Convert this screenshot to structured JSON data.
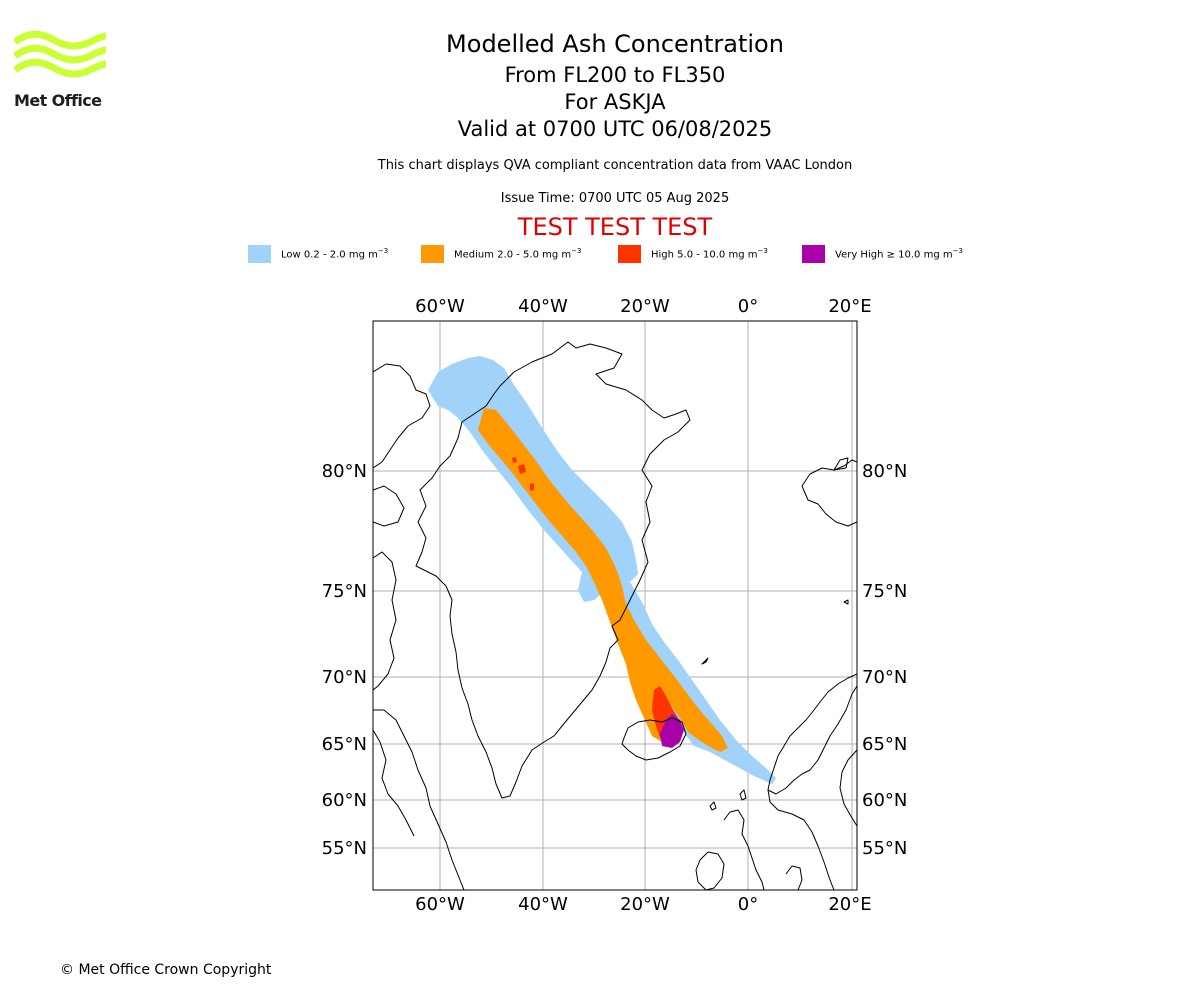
{
  "header": {
    "title": "Modelled Ash Concentration",
    "levels": "From FL200 to FL350",
    "volcano": "For ASKJA",
    "valid": "Valid at 0700 UTC 06/08/2025",
    "description": "This chart displays QVA compliant concentration data from VAAC London",
    "issue_time": "Issue Time: 0700 UTC 05 Aug 2025",
    "test_banner": "TEST TEST TEST"
  },
  "logo": {
    "text": "Met Office",
    "icon": "met-office-wave-logo",
    "color": "#ccff33"
  },
  "legend": [
    {
      "label": "Low 0.2 - 2.0 mg m",
      "sup": "−3",
      "color": "#a0d2fa"
    },
    {
      "label": "Medium 2.0 - 5.0 mg m",
      "sup": "−3",
      "color": "#ff9900"
    },
    {
      "label": "High 5.0 - 10.0 mg m",
      "sup": "−3",
      "color": "#ff3300"
    },
    {
      "label": "Very High  ≥  10.0 mg m",
      "sup": "−3",
      "color": "#aa00aa"
    }
  ],
  "map": {
    "lon_labels": [
      "60°W",
      "40°W",
      "20°W",
      "0°",
      "20°E"
    ],
    "lat_labels": [
      "80°N",
      "75°N",
      "70°N",
      "65°N",
      "60°N",
      "55°N"
    ],
    "grid": true,
    "regions": [
      "Greenland",
      "Iceland",
      "Svalbard",
      "Scandinavia",
      "British Isles",
      "Canadian Arctic"
    ]
  },
  "footer": {
    "copyright": "© Met Office Crown Copyright"
  }
}
